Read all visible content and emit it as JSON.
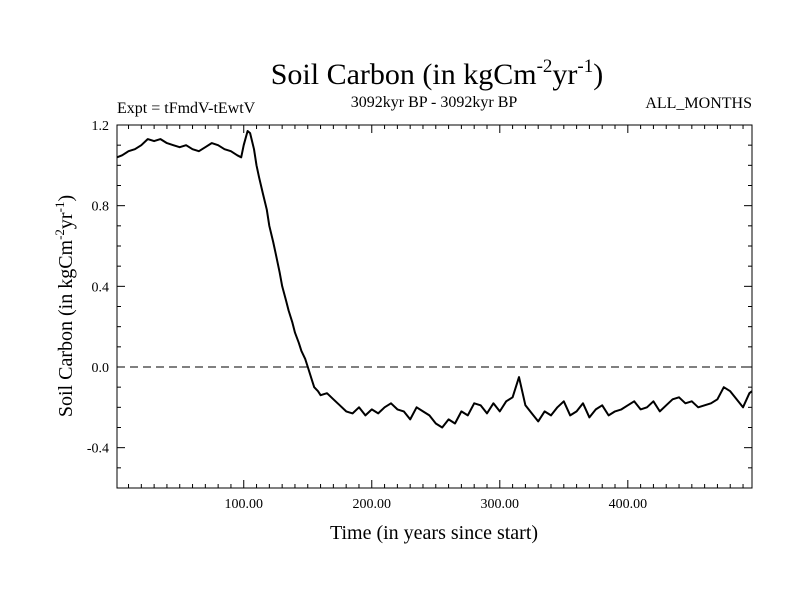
{
  "chart_data": {
    "type": "line",
    "title": "Soil Carbon (in kgCm",
    "title_sup1": "-2",
    "title_mid": "yr",
    "title_sup2": "-1",
    "title_end": ")",
    "experiment_label": "Expt = tFmdV-tEwtV",
    "period_label": "3092kyr BP - 3092kyr BP",
    "season_label": "ALL_MONTHS",
    "xlabel": "Time (in years since start)",
    "ylabel_main": "Soil Carbon (in kgCm",
    "ylabel_sup1": "-2",
    "ylabel_mid": "yr",
    "ylabel_sup2": "-1",
    "ylabel_end": ")",
    "xlim": [
      1,
      497
    ],
    "ylim": [
      -0.6,
      1.2
    ],
    "x_ticks": [
      100,
      200,
      300,
      400
    ],
    "x_tick_labels": [
      "100.00",
      "200.00",
      "300.00",
      "400.00"
    ],
    "y_ticks": [
      1.2,
      0.8,
      0.4,
      0.0,
      -0.4
    ],
    "y_tick_labels": [
      "1.2",
      "0.8",
      "0.4",
      "0.0",
      "-0.4"
    ],
    "reference_line": {
      "y": 0.0,
      "style": "dashed"
    },
    "series": [
      {
        "name": "tFmdV-tEwtV",
        "color": "#000000",
        "x": [
          1,
          5,
          10,
          15,
          20,
          25,
          30,
          35,
          40,
          45,
          50,
          55,
          60,
          65,
          70,
          75,
          80,
          85,
          90,
          95,
          98,
          100,
          103,
          105,
          108,
          110,
          112,
          115,
          118,
          120,
          123,
          125,
          128,
          130,
          133,
          135,
          138,
          140,
          143,
          145,
          148,
          150,
          153,
          155,
          158,
          160,
          165,
          170,
          175,
          180,
          185,
          190,
          195,
          200,
          205,
          210,
          215,
          220,
          225,
          230,
          235,
          240,
          245,
          250,
          255,
          260,
          265,
          270,
          275,
          280,
          285,
          290,
          295,
          300,
          305,
          310,
          315,
          320,
          325,
          330,
          335,
          340,
          345,
          350,
          355,
          360,
          365,
          370,
          375,
          380,
          385,
          390,
          395,
          400,
          405,
          410,
          415,
          420,
          425,
          430,
          435,
          440,
          445,
          450,
          455,
          460,
          465,
          470,
          475,
          480,
          485,
          490,
          495,
          497
        ],
        "values": [
          1.04,
          1.05,
          1.07,
          1.08,
          1.1,
          1.13,
          1.12,
          1.13,
          1.11,
          1.1,
          1.09,
          1.1,
          1.08,
          1.07,
          1.09,
          1.11,
          1.1,
          1.08,
          1.07,
          1.05,
          1.04,
          1.1,
          1.17,
          1.16,
          1.08,
          1.0,
          0.94,
          0.86,
          0.78,
          0.7,
          0.62,
          0.56,
          0.47,
          0.4,
          0.33,
          0.28,
          0.22,
          0.17,
          0.12,
          0.08,
          0.04,
          0.0,
          -0.06,
          -0.1,
          -0.12,
          -0.14,
          -0.13,
          -0.16,
          -0.19,
          -0.22,
          -0.23,
          -0.2,
          -0.24,
          -0.21,
          -0.23,
          -0.2,
          -0.18,
          -0.21,
          -0.22,
          -0.26,
          -0.2,
          -0.22,
          -0.24,
          -0.28,
          -0.3,
          -0.26,
          -0.28,
          -0.22,
          -0.24,
          -0.18,
          -0.19,
          -0.23,
          -0.18,
          -0.22,
          -0.17,
          -0.15,
          -0.05,
          -0.19,
          -0.23,
          -0.27,
          -0.22,
          -0.24,
          -0.2,
          -0.17,
          -0.24,
          -0.22,
          -0.18,
          -0.25,
          -0.21,
          -0.19,
          -0.24,
          -0.22,
          -0.21,
          -0.19,
          -0.17,
          -0.21,
          -0.2,
          -0.17,
          -0.22,
          -0.19,
          -0.16,
          -0.15,
          -0.18,
          -0.17,
          -0.2,
          -0.19,
          -0.18,
          -0.16,
          -0.1,
          -0.12,
          -0.16,
          -0.2,
          -0.13,
          -0.12
        ]
      }
    ]
  }
}
